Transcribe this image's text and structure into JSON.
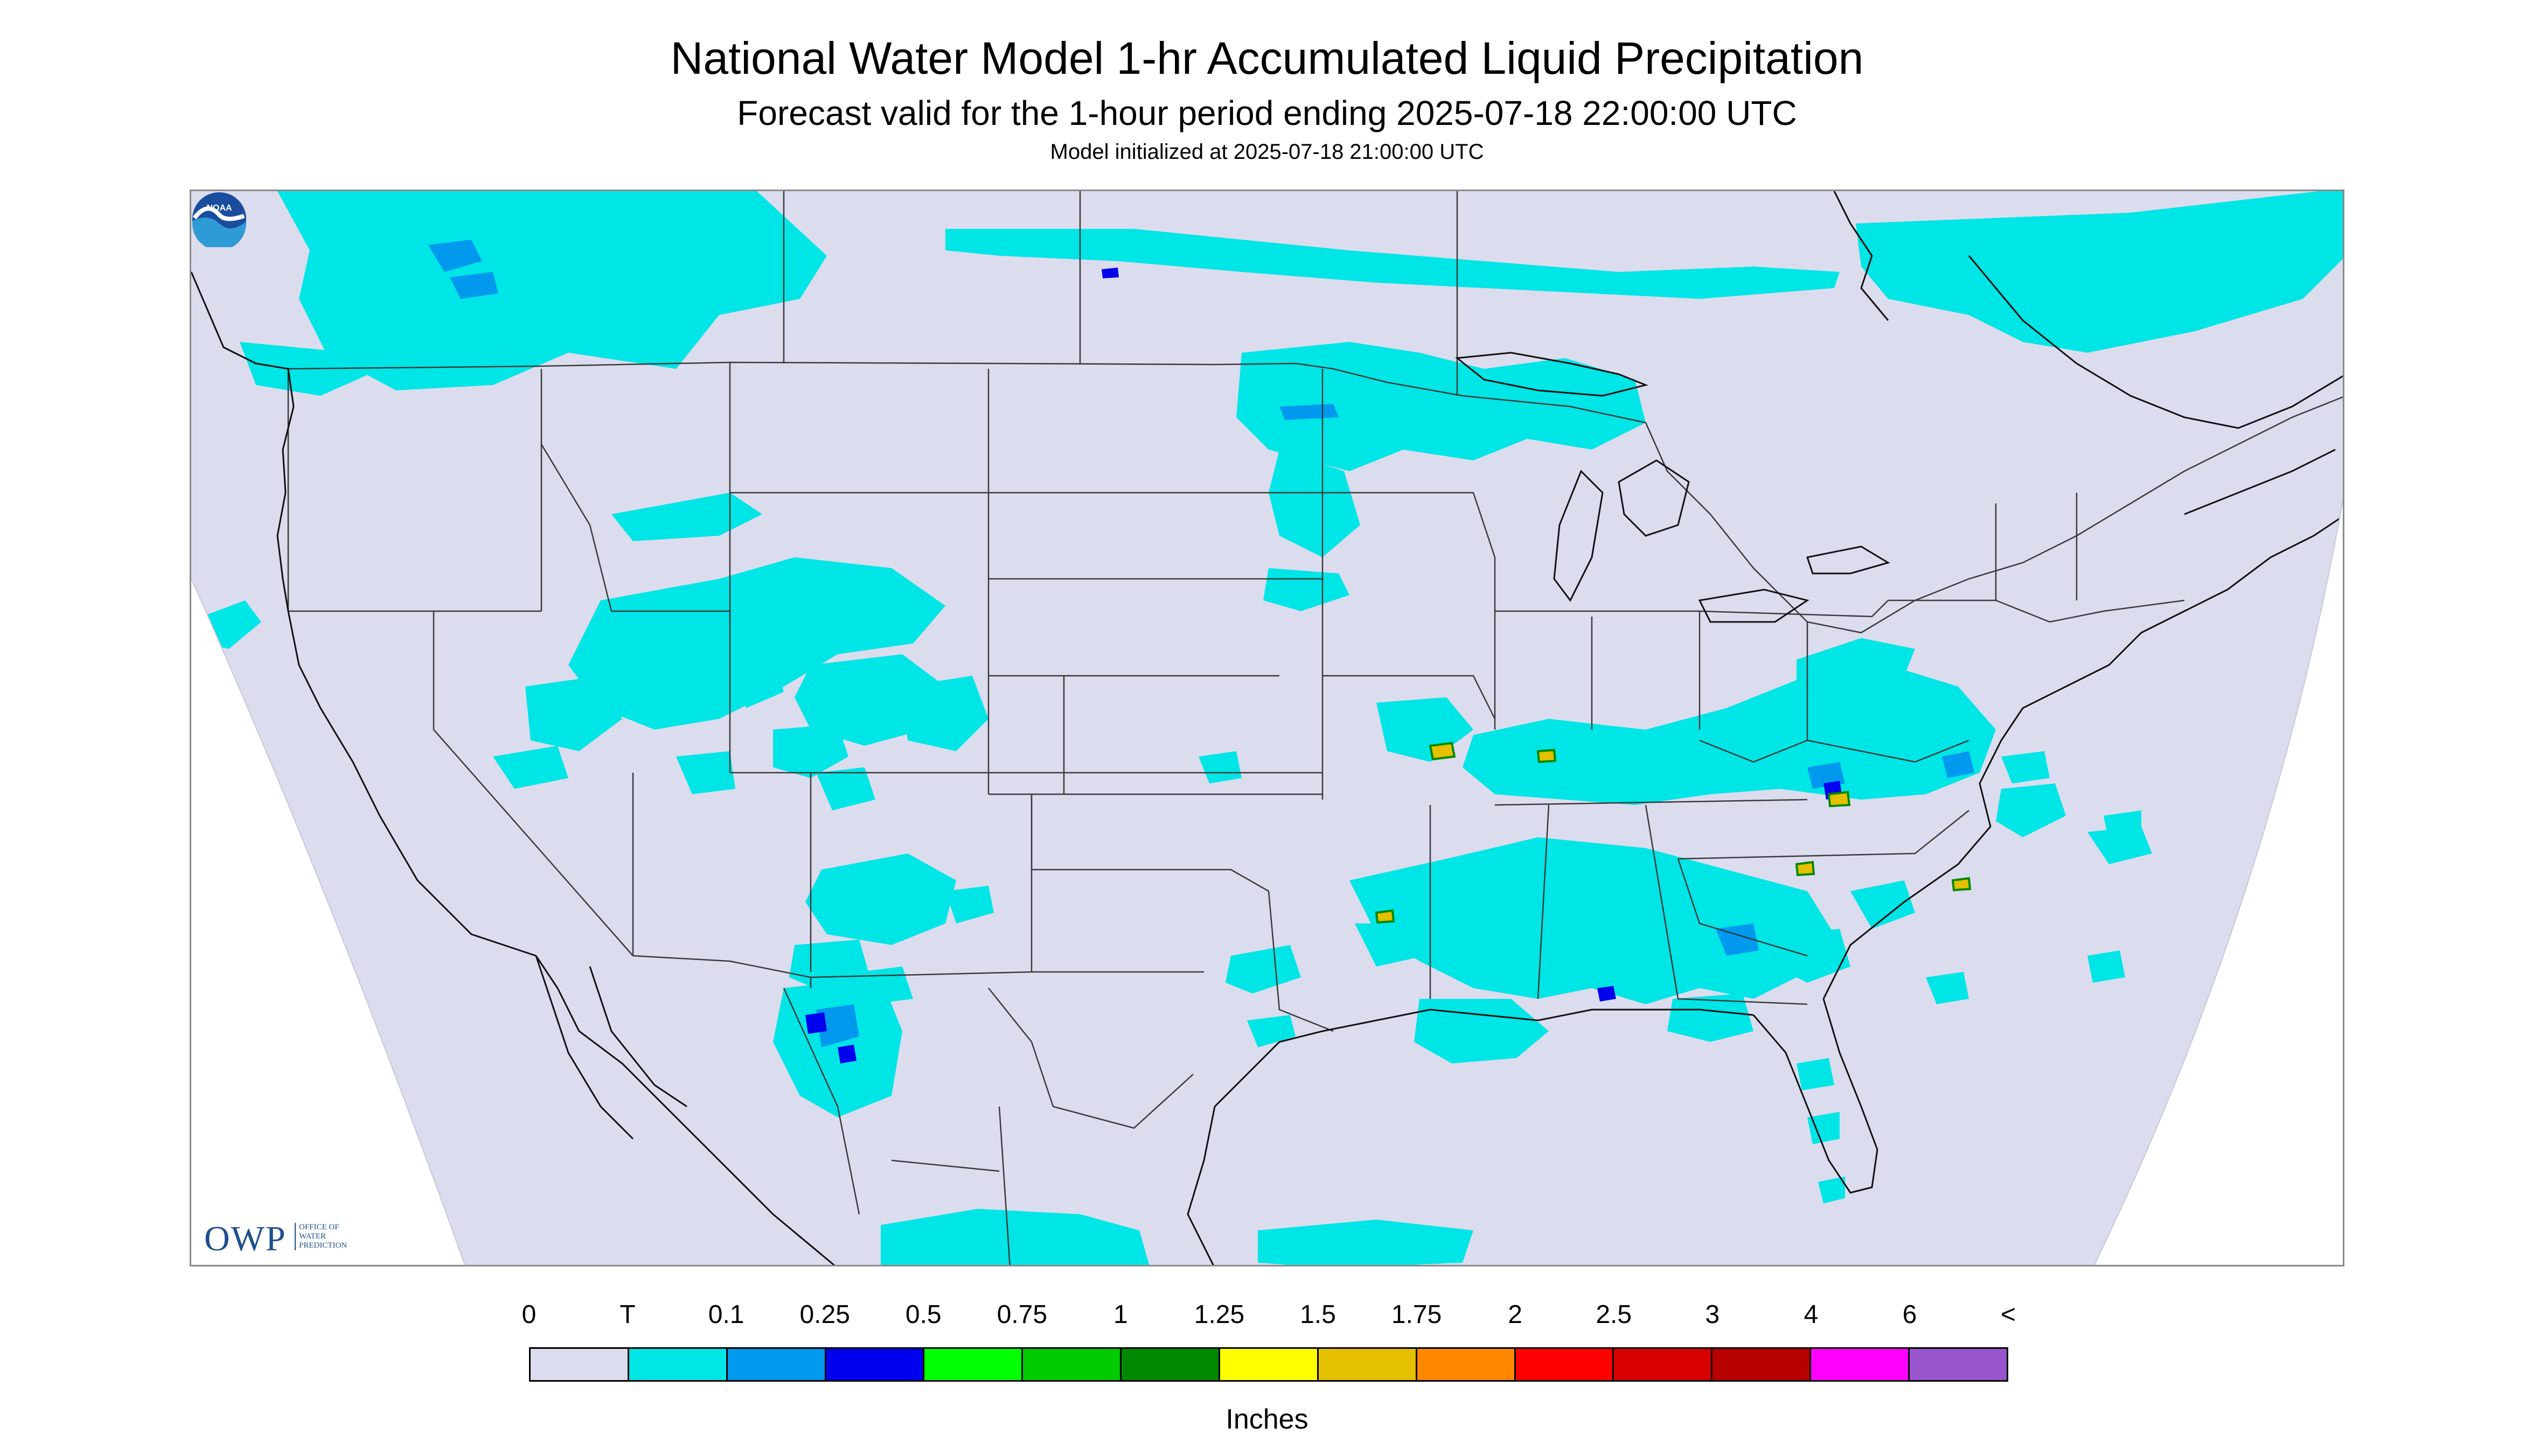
{
  "header": {
    "title": "National Water Model 1-hr Accumulated Liquid Precipitation",
    "subtitle": "Forecast valid for the 1-hour period ending 2025-07-18 22:00:00 UTC",
    "init": "Model initialized at 2025-07-18 21:00:00 UTC"
  },
  "map": {
    "background_color": "#dcdcef",
    "state_line_color": "#3a3a3a",
    "coast_line_color": "#111111",
    "regions": [
      "Pacific Northwest and British Columbia",
      "Northern Rockies and Great Basin",
      "Southwest and Arizona",
      "Northern Plains and Upper Midwest",
      "Ohio Valley and Mid-Atlantic",
      "Southeast and Gulf Coast",
      "Southern Ontario and Quebec"
    ]
  },
  "logos": {
    "owp_letters": "OWP",
    "owp_line1": "OFFICE OF",
    "owp_line2": "WATER",
    "owp_line3": "PREDICTION",
    "noaa_text": "NOAA"
  },
  "legend": {
    "unit": "Inches",
    "ticks": [
      "0",
      "T",
      "0.1",
      "0.25",
      "0.5",
      "0.75",
      "1",
      "1.25",
      "1.5",
      "1.75",
      "2",
      "2.5",
      "3",
      "4",
      "6",
      "<"
    ],
    "colors": [
      "#dcdcef",
      "#00e5e5",
      "#0099ee",
      "#0000ee",
      "#00ff00",
      "#00cc00",
      "#008800",
      "#ffff00",
      "#e5c000",
      "#ff8800",
      "#ff0000",
      "#d80000",
      "#b80000",
      "#ff00ff",
      "#9955cc"
    ]
  }
}
